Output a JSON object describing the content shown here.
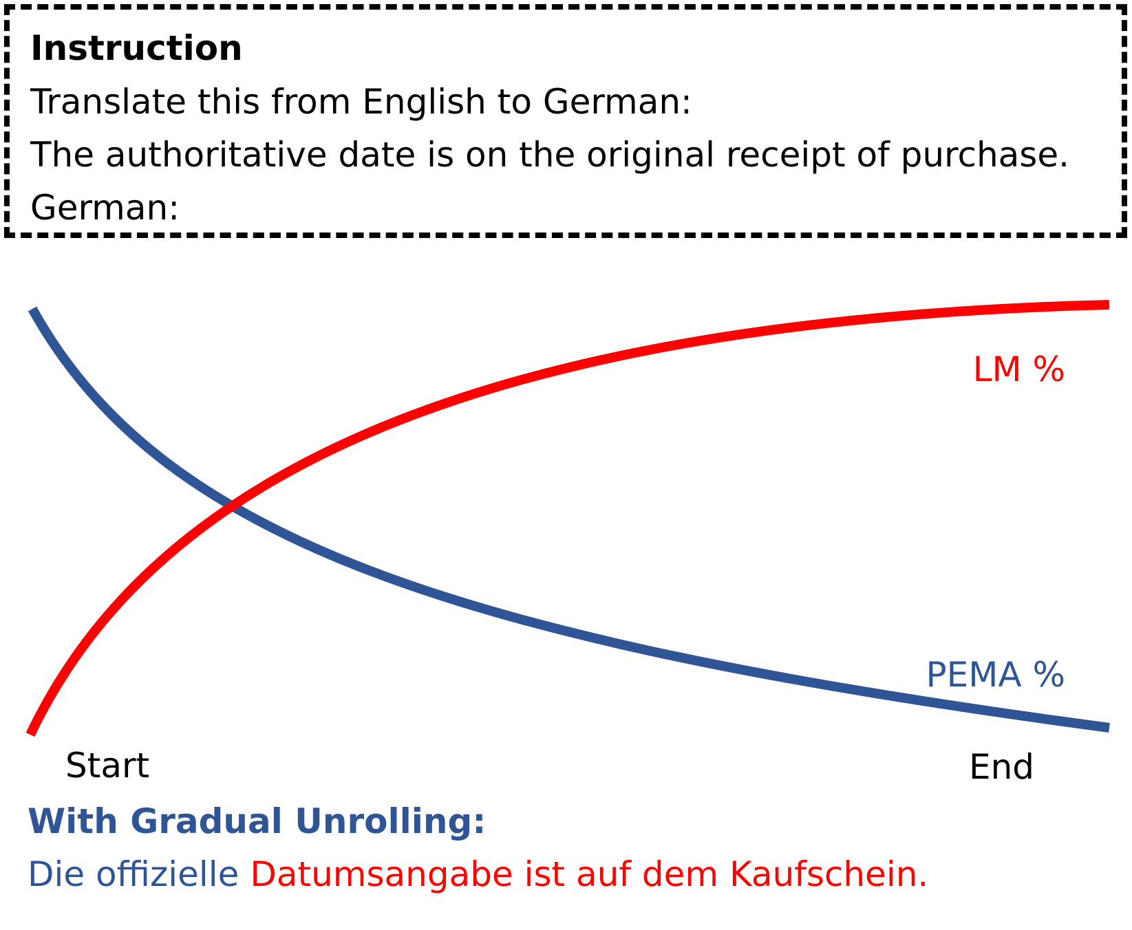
{
  "instruction": {
    "title": "Instruction",
    "lines": [
      "Translate this from English to German:",
      "The authoritative date is on the original receipt of purchase.",
      "German:"
    ]
  },
  "diagram": {
    "lm_label": "LM %",
    "pema_label": "PEMA %",
    "start_label": "Start",
    "end_label": "End"
  },
  "result": {
    "heading": "With Gradual Unrolling:",
    "pema_part": "Die offizielle",
    "lm_part": "Datumsangabe ist auf dem Kaufschein."
  },
  "colors": {
    "lm": "#ff0000",
    "pema": "#2f5597",
    "text": "#000000"
  }
}
